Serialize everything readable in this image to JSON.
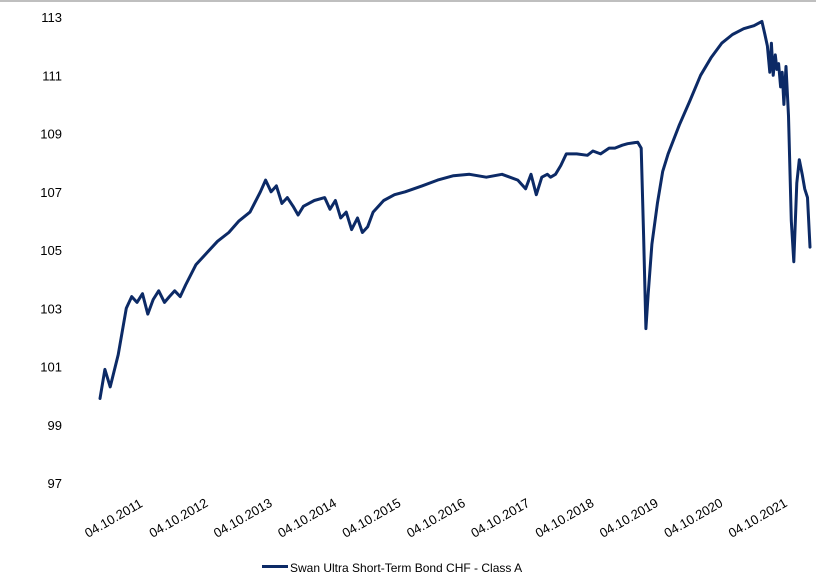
{
  "chart_data": {
    "type": "line",
    "title": "",
    "xlabel": "",
    "ylabel": "",
    "ylim": [
      97,
      113
    ],
    "y_ticks": [
      "97",
      "99",
      "101",
      "103",
      "105",
      "107",
      "109",
      "111",
      "113"
    ],
    "x_ticks": [
      "04.10.2011",
      "04.10.2012",
      "04.10.2013",
      "04.10.2014",
      "04.10.2015",
      "04.10.2016",
      "04.10.2017",
      "04.10.2018",
      "04.10.2019",
      "04.10.2020",
      "04.10.2021"
    ],
    "grid": false,
    "legend_position": "bottom",
    "series": [
      {
        "name": "Swan Ultra Short-Term Bond CHF - Class A",
        "color": "#0c2a66",
        "points": [
          [
            "2011-10-04",
            99.9
          ],
          [
            "2011-11-01",
            100.9
          ],
          [
            "2011-12-01",
            100.3
          ],
          [
            "2012-01-15",
            101.4
          ],
          [
            "2012-03-01",
            103.0
          ],
          [
            "2012-04-01",
            103.4
          ],
          [
            "2012-05-01",
            103.2
          ],
          [
            "2012-06-01",
            103.5
          ],
          [
            "2012-07-01",
            102.8
          ],
          [
            "2012-08-01",
            103.3
          ],
          [
            "2012-09-01",
            103.6
          ],
          [
            "2012-10-04",
            103.2
          ],
          [
            "2012-11-01",
            103.4
          ],
          [
            "2012-12-01",
            103.6
          ],
          [
            "2013-01-01",
            103.4
          ],
          [
            "2013-02-01",
            103.8
          ],
          [
            "2013-04-01",
            104.5
          ],
          [
            "2013-06-01",
            104.9
          ],
          [
            "2013-08-01",
            105.3
          ],
          [
            "2013-10-04",
            105.6
          ],
          [
            "2013-12-01",
            106.0
          ],
          [
            "2014-02-01",
            106.3
          ],
          [
            "2014-04-01",
            107.0
          ],
          [
            "2014-05-01",
            107.4
          ],
          [
            "2014-06-01",
            107.0
          ],
          [
            "2014-07-01",
            107.2
          ],
          [
            "2014-08-01",
            106.6
          ],
          [
            "2014-09-01",
            106.8
          ],
          [
            "2014-10-04",
            106.5
          ],
          [
            "2014-11-01",
            106.2
          ],
          [
            "2014-12-01",
            106.5
          ],
          [
            "2015-02-01",
            106.7
          ],
          [
            "2015-04-01",
            106.8
          ],
          [
            "2015-05-01",
            106.4
          ],
          [
            "2015-06-01",
            106.7
          ],
          [
            "2015-07-01",
            106.1
          ],
          [
            "2015-08-01",
            106.3
          ],
          [
            "2015-09-01",
            105.7
          ],
          [
            "2015-10-04",
            106.1
          ],
          [
            "2015-11-01",
            105.6
          ],
          [
            "2015-12-01",
            105.8
          ],
          [
            "2016-01-01",
            106.3
          ],
          [
            "2016-03-01",
            106.7
          ],
          [
            "2016-05-01",
            106.9
          ],
          [
            "2016-07-01",
            107.0
          ],
          [
            "2016-10-04",
            107.2
          ],
          [
            "2017-01-01",
            107.4
          ],
          [
            "2017-04-01",
            107.55
          ],
          [
            "2017-07-01",
            107.6
          ],
          [
            "2017-10-04",
            107.5
          ],
          [
            "2018-01-01",
            107.6
          ],
          [
            "2018-04-01",
            107.4
          ],
          [
            "2018-05-15",
            107.1
          ],
          [
            "2018-06-15",
            107.6
          ],
          [
            "2018-07-15",
            106.9
          ],
          [
            "2018-08-15",
            107.5
          ],
          [
            "2018-09-15",
            107.6
          ],
          [
            "2018-10-04",
            107.5
          ],
          [
            "2018-11-01",
            107.6
          ],
          [
            "2018-12-01",
            107.9
          ],
          [
            "2019-01-01",
            108.3
          ],
          [
            "2019-03-01",
            108.3
          ],
          [
            "2019-05-01",
            108.25
          ],
          [
            "2019-06-01",
            108.4
          ],
          [
            "2019-07-15",
            108.3
          ],
          [
            "2019-09-01",
            108.5
          ],
          [
            "2019-10-04",
            108.5
          ],
          [
            "2019-11-15",
            108.6
          ],
          [
            "2019-12-15",
            108.65
          ],
          [
            "2020-02-10",
            108.7
          ],
          [
            "2020-03-01",
            108.5
          ],
          [
            "2020-03-15",
            105.5
          ],
          [
            "2020-03-28",
            102.3
          ],
          [
            "2020-04-10",
            103.5
          ],
          [
            "2020-05-01",
            105.2
          ],
          [
            "2020-06-01",
            106.6
          ],
          [
            "2020-07-01",
            107.7
          ],
          [
            "2020-08-01",
            108.3
          ],
          [
            "2020-10-04",
            109.3
          ],
          [
            "2020-12-01",
            110.1
          ],
          [
            "2021-02-01",
            111.0
          ],
          [
            "2021-04-01",
            111.6
          ],
          [
            "2021-06-01",
            112.1
          ],
          [
            "2021-08-01",
            112.4
          ],
          [
            "2021-10-04",
            112.6
          ],
          [
            "2021-12-01",
            112.7
          ],
          [
            "2022-01-15",
            112.85
          ],
          [
            "2022-02-01",
            112.4
          ],
          [
            "2022-02-15",
            112.0
          ],
          [
            "2022-03-01",
            111.1
          ],
          [
            "2022-03-10",
            112.1
          ],
          [
            "2022-03-20",
            111.0
          ],
          [
            "2022-04-01",
            111.7
          ],
          [
            "2022-04-10",
            111.2
          ],
          [
            "2022-04-20",
            111.4
          ],
          [
            "2022-05-01",
            110.6
          ],
          [
            "2022-05-10",
            111.1
          ],
          [
            "2022-05-20",
            110.0
          ],
          [
            "2022-06-01",
            111.3
          ],
          [
            "2022-06-15",
            109.6
          ],
          [
            "2022-07-01",
            106.0
          ],
          [
            "2022-07-15",
            104.6
          ],
          [
            "2022-08-01",
            107.3
          ],
          [
            "2022-08-15",
            108.1
          ],
          [
            "2022-09-01",
            107.6
          ],
          [
            "2022-09-15",
            107.1
          ],
          [
            "2022-10-01",
            106.8
          ],
          [
            "2022-10-15",
            105.1
          ]
        ]
      }
    ]
  }
}
